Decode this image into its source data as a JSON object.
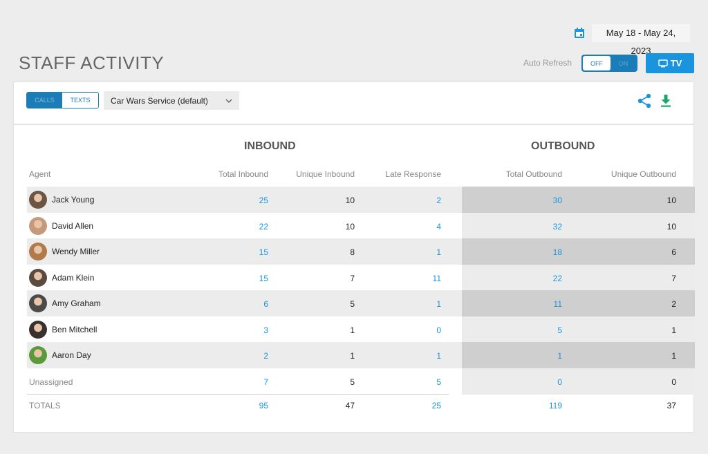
{
  "date_range": "May 18 - May 24, 2023",
  "page_title": "STAFF ACTIVITY",
  "auto_refresh": {
    "label": "Auto Refresh",
    "off": "OFF",
    "on": "ON",
    "state": "off"
  },
  "tv_button": "TV",
  "toolbar": {
    "calls": "CALLS",
    "texts": "TEXTS",
    "service": "Car Wars Service (default)"
  },
  "groups": {
    "inbound": "INBOUND",
    "outbound": "OUTBOUND"
  },
  "columns": {
    "agent": "Agent",
    "total_inbound": "Total Inbound",
    "unique_inbound": "Unique Inbound",
    "late_response": "Late Response",
    "total_outbound": "Total Outbound",
    "unique_outbound": "Unique Outbound"
  },
  "rows": [
    {
      "agent": "Jack Young",
      "total_inbound": "25",
      "unique_inbound": "10",
      "late_response": "2",
      "total_outbound": "30",
      "unique_outbound": "10",
      "avatar_color": "#6b5544"
    },
    {
      "agent": "David Allen",
      "total_inbound": "22",
      "unique_inbound": "10",
      "late_response": "4",
      "total_outbound": "32",
      "unique_outbound": "10",
      "avatar_color": "#c49a7a"
    },
    {
      "agent": "Wendy Miller",
      "total_inbound": "15",
      "unique_inbound": "8",
      "late_response": "1",
      "total_outbound": "18",
      "unique_outbound": "6",
      "avatar_color": "#b07a4a"
    },
    {
      "agent": "Adam Klein",
      "total_inbound": "15",
      "unique_inbound": "7",
      "late_response": "11",
      "total_outbound": "22",
      "unique_outbound": "7",
      "avatar_color": "#5a4a40"
    },
    {
      "agent": "Amy Graham",
      "total_inbound": "6",
      "unique_inbound": "5",
      "late_response": "1",
      "total_outbound": "11",
      "unique_outbound": "2",
      "avatar_color": "#4a4a48"
    },
    {
      "agent": "Ben Mitchell",
      "total_inbound": "3",
      "unique_inbound": "1",
      "late_response": "0",
      "total_outbound": "5",
      "unique_outbound": "1",
      "avatar_color": "#3a3030"
    },
    {
      "agent": "Aaron Day",
      "total_inbound": "2",
      "unique_inbound": "1",
      "late_response": "1",
      "total_outbound": "1",
      "unique_outbound": "1",
      "avatar_color": "#5a9a3a"
    }
  ],
  "unassigned": {
    "label": "Unassigned",
    "total_inbound": "7",
    "unique_inbound": "5",
    "late_response": "5",
    "total_outbound": "0",
    "unique_outbound": "0"
  },
  "totals": {
    "label": "TOTALS",
    "total_inbound": "95",
    "unique_inbound": "47",
    "late_response": "25",
    "total_outbound": "119",
    "unique_outbound": "37"
  },
  "colors": {
    "accent": "#1a94dc",
    "toggle": "#1a7db8",
    "download": "#1aa86a"
  },
  "icons": {
    "calendar": "calendar-icon",
    "tv": "tv-icon",
    "share": "share-icon",
    "download": "download-icon",
    "dropdown": "chevron-down-icon"
  }
}
